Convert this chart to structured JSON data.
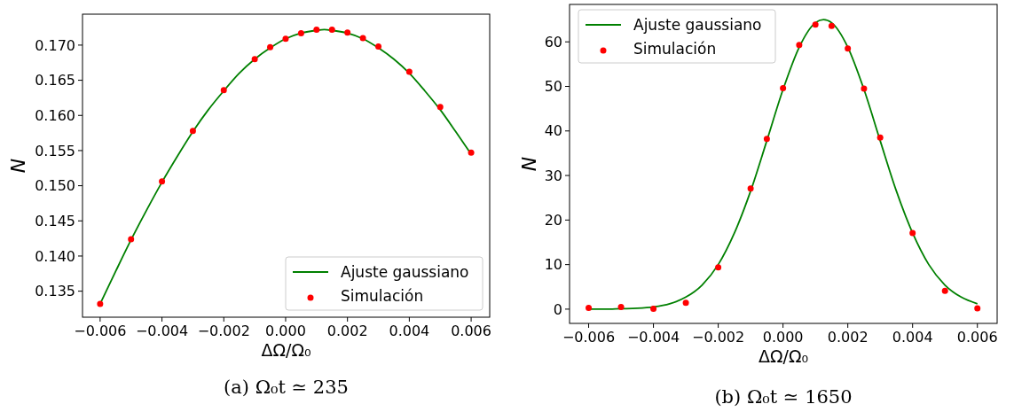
{
  "chart_data": [
    {
      "type": "line",
      "title": "(a) Ω₀t ≃ 235",
      "xlabel": "ΔΩ/Ω₀",
      "ylabel": "N",
      "legend": "bottom right",
      "xlim": [
        -0.00657,
        0.0066
      ],
      "ylim": [
        0.1313,
        0.1744
      ],
      "xticks": [
        {
          "value": -0.006,
          "label": "−0.006"
        },
        {
          "value": -0.004,
          "label": "−0.004"
        },
        {
          "value": -0.002,
          "label": "−0.002"
        },
        {
          "value": 0,
          "label": "0.000"
        },
        {
          "value": 0.002,
          "label": "0.002"
        },
        {
          "value": 0.004,
          "label": "0.004"
        },
        {
          "value": 0.006,
          "label": "0.006"
        }
      ],
      "yticks": [
        0.135,
        {
          "value": 0.14,
          "label": "0.140"
        },
        0.145,
        {
          "value": 0.15,
          "label": "0.150"
        },
        0.155,
        {
          "value": 0.16,
          "label": "0.160"
        },
        0.165,
        {
          "value": 0.17,
          "label": "0.170"
        }
      ],
      "series": [
        {
          "name": "Ajuste gaussiano",
          "color": "#008000",
          "x": [
            -0.006,
            -0.0055,
            -0.005,
            -0.0045,
            -0.004,
            -0.0035,
            -0.003,
            -0.0025,
            -0.002,
            -0.0015,
            -0.001,
            -0.0005,
            0,
            0.0005,
            0.001,
            0.00125,
            0.0015,
            0.002,
            0.0025,
            0.003,
            0.0035,
            0.004,
            0.0045,
            0.005,
            0.0055,
            0.006
          ],
          "values": [
            0.1332,
            0.1378,
            0.1423,
            0.1465,
            0.1505,
            0.1542,
            0.1577,
            0.1608,
            0.1635,
            0.166,
            0.168,
            0.1696,
            0.1709,
            0.1717,
            0.1721,
            0.1722,
            0.1721,
            0.1717,
            0.1709,
            0.1696,
            0.168,
            0.166,
            0.1635,
            0.1608,
            0.1577,
            0.1545
          ]
        },
        {
          "name": "Simulación",
          "type": "scatter",
          "marker": "circle",
          "color": "#ff0000",
          "x": [
            -0.006,
            -0.005,
            -0.004,
            -0.003,
            -0.002,
            -0.001,
            -0.0005,
            0,
            0.0005,
            0.001,
            0.0015,
            0.002,
            0.0025,
            0.003,
            0.004,
            0.005,
            0.006
          ],
          "values": [
            0.1332,
            0.1424,
            0.1506,
            0.1578,
            0.1636,
            0.168,
            0.1697,
            0.1709,
            0.1717,
            0.1722,
            0.1722,
            0.1718,
            0.171,
            0.1698,
            0.1662,
            0.1612,
            0.1547
          ]
        }
      ]
    },
    {
      "type": "line",
      "title": "(b) Ω₀t ≃ 1650",
      "xlabel": "ΔΩ/Ω₀",
      "ylabel": "N",
      "legend": "top left",
      "xlim": [
        -0.00659,
        0.00661
      ],
      "ylim": [
        -3.2,
        68.4
      ],
      "xticks": [
        {
          "value": -0.006,
          "label": "−0.006"
        },
        {
          "value": -0.004,
          "label": "−0.004"
        },
        {
          "value": -0.002,
          "label": "−0.002"
        },
        {
          "value": 0,
          "label": "0.000"
        },
        {
          "value": 0.002,
          "label": "0.002"
        },
        {
          "value": 0.004,
          "label": "0.004"
        },
        {
          "value": 0.006,
          "label": "0.006"
        }
      ],
      "yticks": [
        0,
        10,
        20,
        30,
        40,
        50,
        60
      ],
      "series": [
        {
          "name": "Ajuste gaussiano",
          "color": "#008000",
          "x": [
            -0.006,
            -0.0055,
            -0.005,
            -0.0045,
            -0.004,
            -0.0035,
            -0.003,
            -0.0025,
            -0.002,
            -0.0015,
            -0.001,
            -0.0005,
            0,
            0.0005,
            0.001,
            0.00125,
            0.0015,
            0.002,
            0.0025,
            0.003,
            0.0035,
            0.004,
            0.0045,
            0.005,
            0.0055,
            0.006
          ],
          "values": [
            0,
            0,
            0.1,
            0.2,
            0.5,
            1.2,
            2.7,
            5.4,
            10,
            17.1,
            26.5,
            37.8,
            49.3,
            58.8,
            64.3,
            65,
            64.3,
            58.8,
            49.3,
            37.8,
            26.5,
            17.1,
            10,
            5.4,
            2.7,
            1.2
          ]
        },
        {
          "name": "Simulación",
          "type": "scatter",
          "marker": "circle",
          "color": "#ff0000",
          "x": [
            -0.006,
            -0.005,
            -0.004,
            -0.003,
            -0.002,
            -0.001,
            -0.0005,
            0,
            0.0005,
            0.001,
            0.0015,
            0.002,
            0.0025,
            0.003,
            0.004,
            0.005,
            0.006
          ],
          "values": [
            0.3,
            0.5,
            0.1,
            1.4,
            9.4,
            27.1,
            38.2,
            49.6,
            59.3,
            63.9,
            63.6,
            58.5,
            49.5,
            38.5,
            17.1,
            4.1,
            0.2
          ]
        }
      ]
    }
  ]
}
